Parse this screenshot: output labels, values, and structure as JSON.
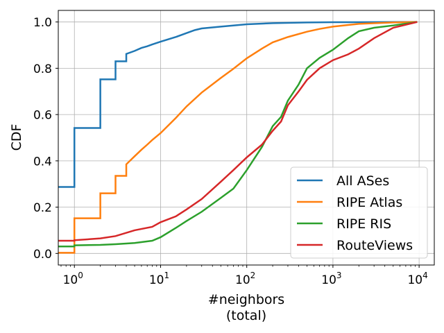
{
  "chart_data": {
    "type": "line",
    "step": true,
    "xscale": "log",
    "xlim": [
      0.65,
      15000
    ],
    "ylim": [
      -0.05,
      1.05
    ],
    "xlabel_line1": "#neighbors",
    "xlabel_line2": "(total)",
    "ylabel": "CDF",
    "grid": true,
    "legend_position": "lower-right",
    "x_ticks": [
      {
        "value": 1,
        "base": "10",
        "exp": "0"
      },
      {
        "value": 10,
        "base": "10",
        "exp": "1"
      },
      {
        "value": 100,
        "base": "10",
        "exp": "2"
      },
      {
        "value": 1000,
        "base": "10",
        "exp": "3"
      },
      {
        "value": 10000,
        "base": "10",
        "exp": "4"
      }
    ],
    "y_ticks": [
      {
        "value": 0.0,
        "label": "0.0"
      },
      {
        "value": 0.2,
        "label": "0.2"
      },
      {
        "value": 0.4,
        "label": "0.4"
      },
      {
        "value": 0.6,
        "label": "0.6"
      },
      {
        "value": 0.8,
        "label": "0.8"
      },
      {
        "value": 1.0,
        "label": "1.0"
      }
    ],
    "series": [
      {
        "name": "All ASes",
        "color": "#1f77b4",
        "points": [
          [
            0.5,
            0.287
          ],
          [
            1,
            0.287
          ],
          [
            1,
            0.542
          ],
          [
            2,
            0.542
          ],
          [
            2,
            0.752
          ],
          [
            3,
            0.752
          ],
          [
            3,
            0.83
          ],
          [
            4,
            0.83
          ],
          [
            4,
            0.862
          ],
          [
            5,
            0.875
          ],
          [
            6,
            0.888
          ],
          [
            7,
            0.895
          ],
          [
            8,
            0.903
          ],
          [
            10,
            0.915
          ],
          [
            15,
            0.935
          ],
          [
            20,
            0.952
          ],
          [
            25,
            0.965
          ],
          [
            30,
            0.972
          ],
          [
            50,
            0.98
          ],
          [
            100,
            0.99
          ],
          [
            200,
            0.995
          ],
          [
            500,
            0.998
          ],
          [
            1000,
            0.999
          ],
          [
            9500,
            1.0
          ]
        ]
      },
      {
        "name": "RIPE Atlas",
        "color": "#ff7f0e",
        "points": [
          [
            0.5,
            0.003
          ],
          [
            1,
            0.003
          ],
          [
            1,
            0.152
          ],
          [
            2,
            0.152
          ],
          [
            2,
            0.26
          ],
          [
            3,
            0.26
          ],
          [
            3,
            0.335
          ],
          [
            4,
            0.335
          ],
          [
            4,
            0.385
          ],
          [
            5,
            0.42
          ],
          [
            6,
            0.448
          ],
          [
            7,
            0.47
          ],
          [
            8,
            0.49
          ],
          [
            10,
            0.52
          ],
          [
            15,
            0.585
          ],
          [
            20,
            0.635
          ],
          [
            30,
            0.695
          ],
          [
            50,
            0.758
          ],
          [
            70,
            0.798
          ],
          [
            100,
            0.843
          ],
          [
            150,
            0.885
          ],
          [
            200,
            0.912
          ],
          [
            300,
            0.935
          ],
          [
            500,
            0.958
          ],
          [
            700,
            0.97
          ],
          [
            1000,
            0.98
          ],
          [
            2000,
            0.992
          ],
          [
            5000,
            0.998
          ],
          [
            9500,
            1.0
          ]
        ]
      },
      {
        "name": "RIPE RIS",
        "color": "#2ca02c",
        "points": [
          [
            0.5,
            0.03
          ],
          [
            1,
            0.03
          ],
          [
            1,
            0.035
          ],
          [
            2,
            0.037
          ],
          [
            3,
            0.04
          ],
          [
            5,
            0.045
          ],
          [
            8,
            0.055
          ],
          [
            10,
            0.07
          ],
          [
            15,
            0.11
          ],
          [
            20,
            0.14
          ],
          [
            30,
            0.18
          ],
          [
            50,
            0.24
          ],
          [
            70,
            0.28
          ],
          [
            100,
            0.36
          ],
          [
            150,
            0.46
          ],
          [
            200,
            0.55
          ],
          [
            250,
            0.59
          ],
          [
            300,
            0.66
          ],
          [
            400,
            0.73
          ],
          [
            500,
            0.8
          ],
          [
            700,
            0.845
          ],
          [
            1000,
            0.88
          ],
          [
            1500,
            0.93
          ],
          [
            2000,
            0.96
          ],
          [
            3000,
            0.975
          ],
          [
            5000,
            0.985
          ],
          [
            9500,
            1.0
          ]
        ]
      },
      {
        "name": "RouteViews",
        "color": "#d62728",
        "points": [
          [
            0.5,
            0.055
          ],
          [
            1,
            0.055
          ],
          [
            1,
            0.057
          ],
          [
            2,
            0.065
          ],
          [
            3,
            0.075
          ],
          [
            5,
            0.1
          ],
          [
            8,
            0.115
          ],
          [
            10,
            0.135
          ],
          [
            15,
            0.16
          ],
          [
            20,
            0.19
          ],
          [
            30,
            0.235
          ],
          [
            50,
            0.31
          ],
          [
            70,
            0.36
          ],
          [
            100,
            0.415
          ],
          [
            150,
            0.47
          ],
          [
            200,
            0.53
          ],
          [
            250,
            0.57
          ],
          [
            300,
            0.64
          ],
          [
            400,
            0.7
          ],
          [
            500,
            0.75
          ],
          [
            700,
            0.8
          ],
          [
            1000,
            0.835
          ],
          [
            1500,
            0.86
          ],
          [
            2000,
            0.885
          ],
          [
            3000,
            0.93
          ],
          [
            5000,
            0.975
          ],
          [
            9500,
            1.0
          ]
        ]
      }
    ]
  }
}
